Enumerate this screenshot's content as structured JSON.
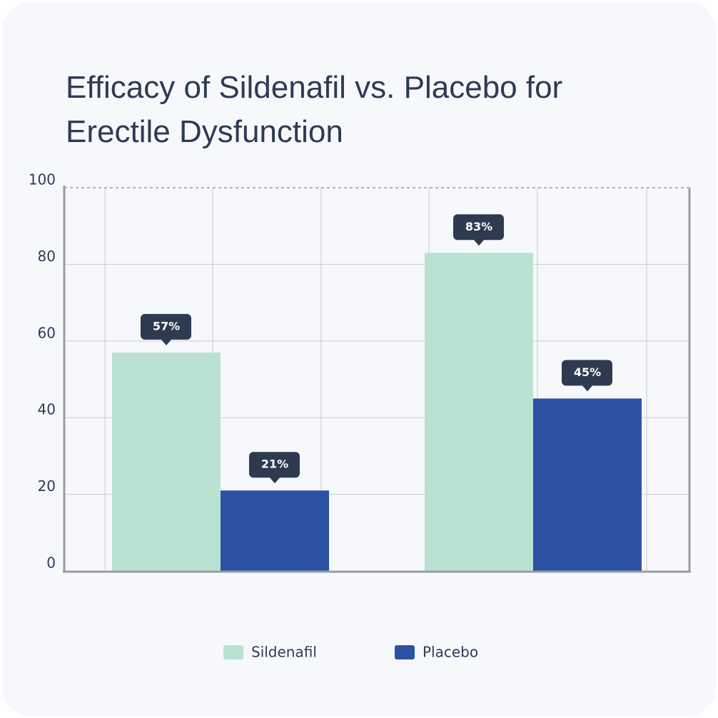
{
  "chart_data": {
    "type": "bar",
    "title": "Efficacy of Sildenafil vs. Placebo for Erectile Dysfunction",
    "categories": [
      null,
      null
    ],
    "series": [
      {
        "name": "Sildenafil",
        "color": "#b9e2d3",
        "values": [
          57,
          83
        ],
        "value_labels": [
          "57%",
          "83%"
        ]
      },
      {
        "name": "Placebo",
        "color": "#2c52a3",
        "values": [
          21,
          45
        ],
        "value_labels": [
          "21%",
          "45%"
        ]
      }
    ],
    "ylim": [
      0,
      100
    ],
    "yticks": [
      0,
      20,
      40,
      60,
      80,
      100
    ],
    "grid": true
  }
}
